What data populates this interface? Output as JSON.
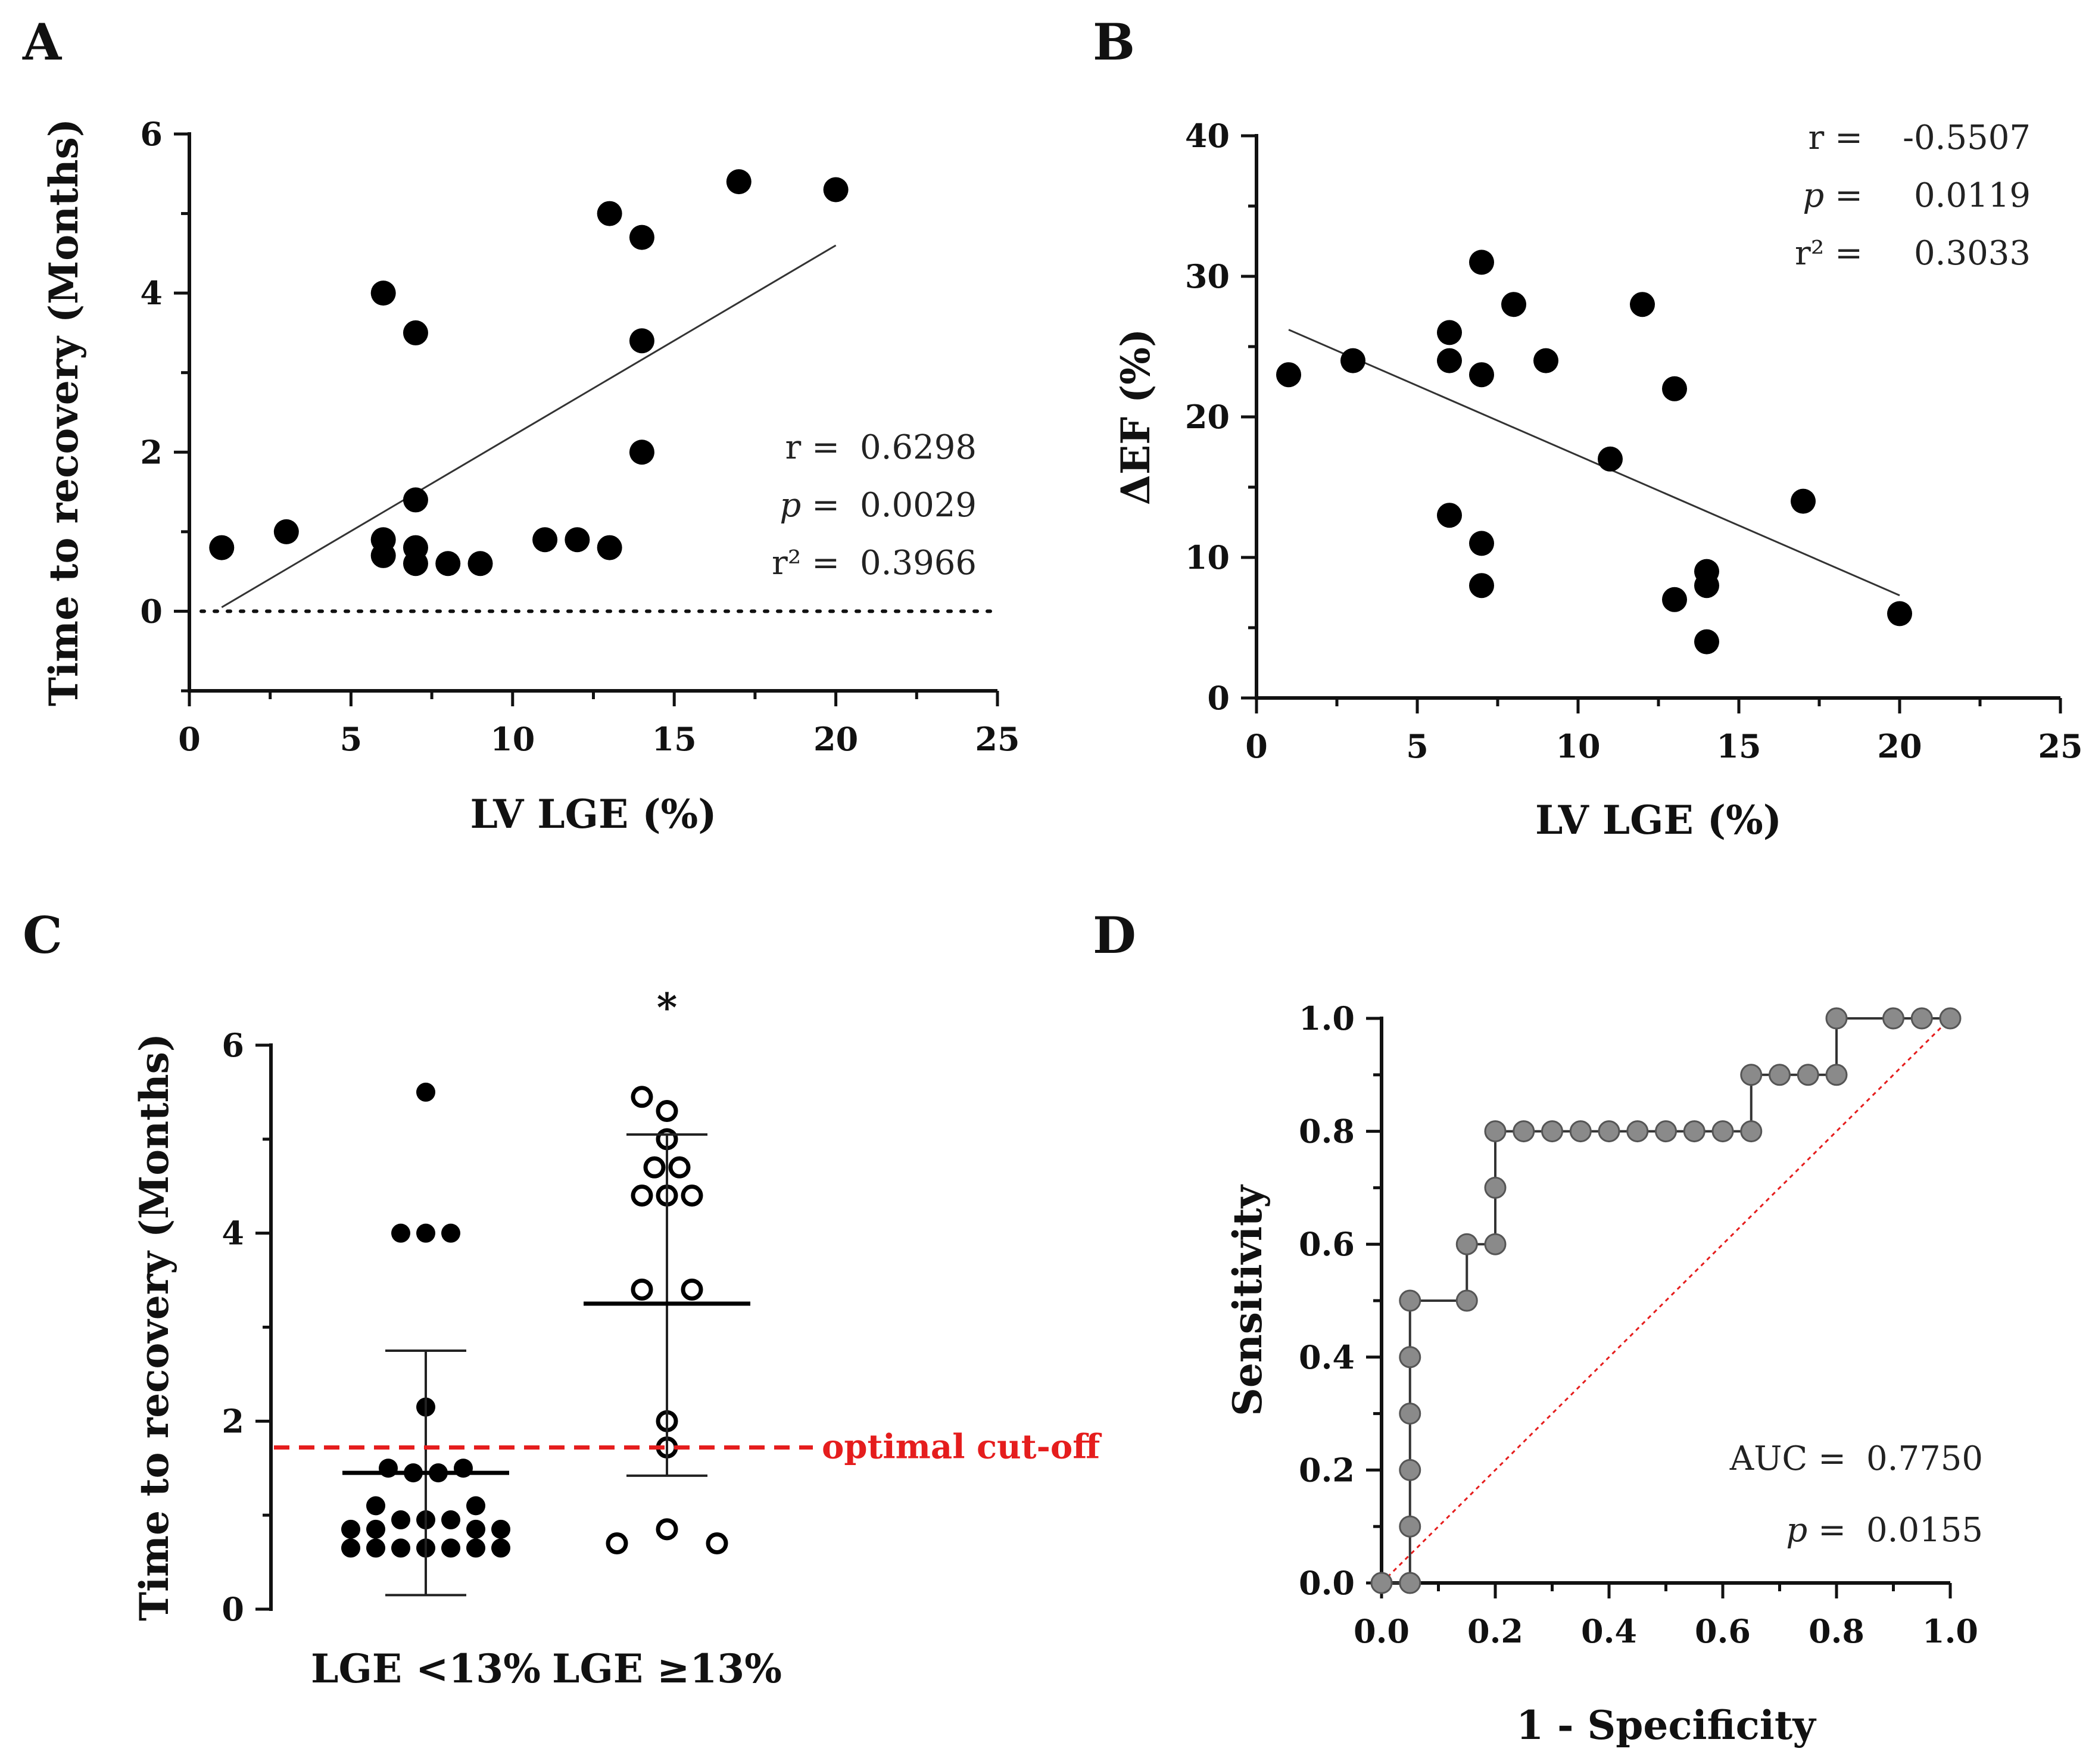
{
  "chart_data": [
    {
      "id": "A",
      "type": "scatter",
      "panel_label": "A",
      "xlabel": "LV LGE (%)",
      "ylabel": "Time to recovery (Months)",
      "xlim": [
        0,
        25
      ],
      "ylim": [
        -1,
        6
      ],
      "xticks": [
        0,
        5,
        10,
        15,
        20,
        25
      ],
      "yticks": [
        0,
        2,
        4,
        6
      ],
      "points": [
        {
          "x": 1,
          "y": 0.8
        },
        {
          "x": 3,
          "y": 1.0
        },
        {
          "x": 6,
          "y": 4.0
        },
        {
          "x": 6,
          "y": 0.9
        },
        {
          "x": 6,
          "y": 0.7
        },
        {
          "x": 7,
          "y": 3.5
        },
        {
          "x": 7,
          "y": 1.4
        },
        {
          "x": 7,
          "y": 0.8
        },
        {
          "x": 7,
          "y": 0.6
        },
        {
          "x": 8,
          "y": 0.6
        },
        {
          "x": 9,
          "y": 0.6
        },
        {
          "x": 11,
          "y": 0.9
        },
        {
          "x": 12,
          "y": 0.9
        },
        {
          "x": 13,
          "y": 5.0
        },
        {
          "x": 13,
          "y": 0.8
        },
        {
          "x": 14,
          "y": 4.7
        },
        {
          "x": 14,
          "y": 3.4
        },
        {
          "x": 14,
          "y": 2.0
        },
        {
          "x": 17,
          "y": 5.4
        },
        {
          "x": 20,
          "y": 5.3
        }
      ],
      "regression": {
        "x1": 1,
        "y1": 0.05,
        "x2": 20,
        "y2": 4.6
      },
      "reference_line_y": 0,
      "stats": [
        {
          "label": "r =",
          "value": "0.6298"
        },
        {
          "label": "p =",
          "value": "0.0029"
        },
        {
          "label": "r² =",
          "value": "0.3966"
        }
      ]
    },
    {
      "id": "B",
      "type": "scatter",
      "panel_label": "B",
      "xlabel": "LV LGE (%)",
      "ylabel": "ΔEF (%)",
      "xlim": [
        0,
        25
      ],
      "ylim": [
        0,
        40
      ],
      "xticks": [
        0,
        5,
        10,
        15,
        20,
        25
      ],
      "yticks": [
        0,
        10,
        20,
        30,
        40
      ],
      "points": [
        {
          "x": 1,
          "y": 23
        },
        {
          "x": 3,
          "y": 24
        },
        {
          "x": 6,
          "y": 26
        },
        {
          "x": 6,
          "y": 24
        },
        {
          "x": 6,
          "y": 13
        },
        {
          "x": 7,
          "y": 31
        },
        {
          "x": 7,
          "y": 23
        },
        {
          "x": 7,
          "y": 11
        },
        {
          "x": 7,
          "y": 8
        },
        {
          "x": 8,
          "y": 28
        },
        {
          "x": 9,
          "y": 24
        },
        {
          "x": 11,
          "y": 17
        },
        {
          "x": 12,
          "y": 28
        },
        {
          "x": 13,
          "y": 22
        },
        {
          "x": 13,
          "y": 7
        },
        {
          "x": 14,
          "y": 9
        },
        {
          "x": 14,
          "y": 8
        },
        {
          "x": 14,
          "y": 4
        },
        {
          "x": 17,
          "y": 14
        },
        {
          "x": 20,
          "y": 6
        }
      ],
      "regression": {
        "x1": 1,
        "y1": 26.2,
        "x2": 20,
        "y2": 7.3
      },
      "stats": [
        {
          "label": "r =",
          "value": "-0.5507"
        },
        {
          "label": "p =",
          "value": "0.0119"
        },
        {
          "label": "r² =",
          "value": "0.3033"
        }
      ]
    },
    {
      "id": "C",
      "type": "scatter",
      "panel_label": "C",
      "ylabel": "Time to recovery (Months)",
      "ylim": [
        0,
        6
      ],
      "yticks": [
        0,
        2,
        4,
        6
      ],
      "categories": [
        "LGE <13%",
        "LGE ≥13%"
      ],
      "significance_marker": "*",
      "cutoff": {
        "y": 1.72,
        "label": "optimal cut-off",
        "color": "#e51d1d"
      },
      "groups": [
        {
          "category": "LGE <13%",
          "filled": true,
          "mean": 1.45,
          "sd_low": 0.15,
          "sd_high": 2.75,
          "points": [
            {
              "y": 5.5,
              "dx": 0
            },
            {
              "y": 4.0,
              "dx": -1
            },
            {
              "y": 4.0,
              "dx": 0
            },
            {
              "y": 4.0,
              "dx": 1
            },
            {
              "y": 2.15,
              "dx": 0
            },
            {
              "y": 1.5,
              "dx": -1.5
            },
            {
              "y": 1.5,
              "dx": 1.5
            },
            {
              "y": 1.45,
              "dx": -0.5
            },
            {
              "y": 1.45,
              "dx": 0.5
            },
            {
              "y": 1.1,
              "dx": -2
            },
            {
              "y": 1.1,
              "dx": 2
            },
            {
              "y": 0.95,
              "dx": -1
            },
            {
              "y": 0.95,
              "dx": 0
            },
            {
              "y": 0.95,
              "dx": 1
            },
            {
              "y": 0.85,
              "dx": -3
            },
            {
              "y": 0.85,
              "dx": -2
            },
            {
              "y": 0.85,
              "dx": 2
            },
            {
              "y": 0.85,
              "dx": 3
            },
            {
              "y": 0.65,
              "dx": -3
            },
            {
              "y": 0.65,
              "dx": -2
            },
            {
              "y": 0.65,
              "dx": -1
            },
            {
              "y": 0.65,
              "dx": 0
            },
            {
              "y": 0.65,
              "dx": 1
            },
            {
              "y": 0.65,
              "dx": 2
            },
            {
              "y": 0.65,
              "dx": 3
            }
          ]
        },
        {
          "category": "LGE ≥13%",
          "filled": false,
          "mean": 3.25,
          "sd_low": 1.42,
          "sd_high": 5.05,
          "points": [
            {
              "y": 5.45,
              "dx": -1
            },
            {
              "y": 5.3,
              "dx": 0
            },
            {
              "y": 5.0,
              "dx": 0
            },
            {
              "y": 4.7,
              "dx": -0.5
            },
            {
              "y": 4.7,
              "dx": 0.5
            },
            {
              "y": 4.4,
              "dx": -1
            },
            {
              "y": 4.4,
              "dx": 0
            },
            {
              "y": 4.4,
              "dx": 1
            },
            {
              "y": 3.4,
              "dx": -1
            },
            {
              "y": 3.4,
              "dx": 1
            },
            {
              "y": 2.0,
              "dx": 0
            },
            {
              "y": 1.72,
              "dx": 0
            },
            {
              "y": 0.85,
              "dx": 0
            },
            {
              "y": 0.7,
              "dx": -2
            },
            {
              "y": 0.7,
              "dx": 2
            }
          ]
        }
      ]
    },
    {
      "id": "D",
      "type": "line",
      "panel_label": "D",
      "xlabel": "1 - Specificity",
      "ylabel": "Sensitivity",
      "xlim": [
        0,
        1
      ],
      "ylim": [
        0,
        1
      ],
      "xticks": [
        "0.0",
        "0.2",
        "0.4",
        "0.6",
        "0.8",
        "1.0"
      ],
      "yticks": [
        "0.0",
        "0.2",
        "0.4",
        "0.6",
        "0.8",
        "1.0"
      ],
      "roc_points": [
        {
          "x": 0,
          "y": 0
        },
        {
          "x": 0.05,
          "y": 0
        },
        {
          "x": 0.05,
          "y": 0.1
        },
        {
          "x": 0.05,
          "y": 0.2
        },
        {
          "x": 0.05,
          "y": 0.3
        },
        {
          "x": 0.05,
          "y": 0.4
        },
        {
          "x": 0.05,
          "y": 0.5
        },
        {
          "x": 0.15,
          "y": 0.5
        },
        {
          "x": 0.15,
          "y": 0.6
        },
        {
          "x": 0.2,
          "y": 0.6
        },
        {
          "x": 0.2,
          "y": 0.7
        },
        {
          "x": 0.2,
          "y": 0.8
        },
        {
          "x": 0.25,
          "y": 0.8
        },
        {
          "x": 0.3,
          "y": 0.8
        },
        {
          "x": 0.35,
          "y": 0.8
        },
        {
          "x": 0.4,
          "y": 0.8
        },
        {
          "x": 0.45,
          "y": 0.8
        },
        {
          "x": 0.5,
          "y": 0.8
        },
        {
          "x": 0.55,
          "y": 0.8
        },
        {
          "x": 0.6,
          "y": 0.8
        },
        {
          "x": 0.65,
          "y": 0.8
        },
        {
          "x": 0.65,
          "y": 0.9
        },
        {
          "x": 0.7,
          "y": 0.9
        },
        {
          "x": 0.75,
          "y": 0.9
        },
        {
          "x": 0.8,
          "y": 0.9
        },
        {
          "x": 0.8,
          "y": 1.0
        },
        {
          "x": 0.9,
          "y": 1.0
        },
        {
          "x": 0.95,
          "y": 1.0
        },
        {
          "x": 1.0,
          "y": 1.0
        }
      ],
      "diagonal_color": "#e51d1d",
      "stats": [
        {
          "label": "AUC =",
          "value": "0.7750"
        },
        {
          "label": "p =",
          "value": "0.0155"
        }
      ]
    }
  ]
}
